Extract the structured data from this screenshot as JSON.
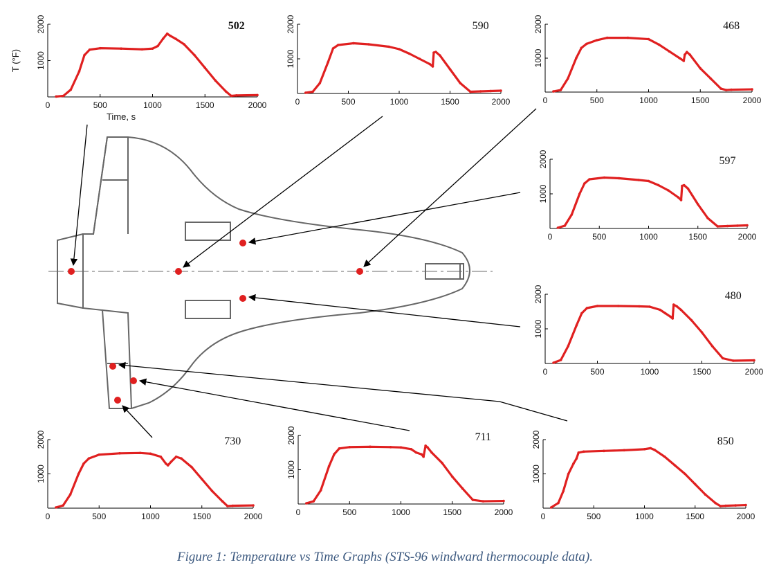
{
  "caption": "Figure 1: Temperature vs Time Graphs (STS-96 windward thermocouple data).",
  "colors": {
    "series": "#e02020",
    "axis": "#000000",
    "orbiter": "#555555"
  },
  "chart_data": [
    {
      "type": "line",
      "title": "502",
      "title_bold": true,
      "ylabel": "T (°F)",
      "xlabel": "Time, s",
      "xlim": [
        0,
        2000
      ],
      "ylim": [
        0,
        2000
      ],
      "x_ticks": [
        "0",
        "500",
        "1000",
        "1500",
        "2000"
      ],
      "y_ticks": [
        "1000",
        "2000"
      ],
      "series": [
        {
          "x": [
            80,
            150,
            220,
            300,
            350,
            400,
            500,
            700,
            900,
            1000,
            1050,
            1100,
            1140,
            1170,
            1220,
            1300,
            1400,
            1500,
            1600,
            1700,
            1750,
            1800,
            2000
          ],
          "y": [
            10,
            30,
            200,
            700,
            1150,
            1300,
            1340,
            1330,
            1310,
            1330,
            1400,
            1600,
            1740,
            1680,
            1600,
            1450,
            1150,
            800,
            450,
            150,
            30,
            40,
            50
          ]
        }
      ]
    },
    {
      "type": "line",
      "title": "590",
      "title_bold": false,
      "xlim": [
        0,
        2000
      ],
      "ylim": [
        0,
        2000
      ],
      "x_ticks": [
        "0",
        "500",
        "1000",
        "1500",
        "2000"
      ],
      "y_ticks": [
        "1000",
        "2000"
      ],
      "series": [
        {
          "x": [
            80,
            150,
            220,
            300,
            350,
            400,
            550,
            700,
            900,
            1000,
            1100,
            1200,
            1300,
            1330,
            1340,
            1360,
            1400,
            1500,
            1600,
            1700,
            1800,
            1900,
            2000
          ],
          "y": [
            20,
            50,
            300,
            900,
            1300,
            1400,
            1450,
            1420,
            1350,
            1280,
            1150,
            1000,
            850,
            780,
            1180,
            1200,
            1100,
            700,
            300,
            50,
            60,
            70,
            80
          ]
        }
      ]
    },
    {
      "type": "line",
      "title": "468",
      "title_bold": false,
      "xlim": [
        0,
        2000
      ],
      "ylim": [
        0,
        2000
      ],
      "x_ticks": [
        "0",
        "500",
        "1000",
        "1500",
        "2000"
      ],
      "y_ticks": [
        "1000",
        "2000"
      ],
      "series": [
        {
          "x": [
            80,
            150,
            220,
            300,
            350,
            400,
            500,
            600,
            800,
            1000,
            1100,
            1200,
            1300,
            1340,
            1350,
            1370,
            1400,
            1500,
            1600,
            1700,
            1750,
            1800,
            2000
          ],
          "y": [
            20,
            60,
            400,
            1000,
            1300,
            1420,
            1530,
            1600,
            1600,
            1560,
            1400,
            1200,
            1000,
            920,
            1100,
            1180,
            1100,
            700,
            400,
            100,
            60,
            70,
            80
          ]
        }
      ]
    },
    {
      "type": "line",
      "title": "597",
      "title_bold": false,
      "xlim": [
        0,
        2000
      ],
      "ylim": [
        0,
        2000
      ],
      "x_ticks": [
        "0",
        "500",
        "1000",
        "1500",
        "2000"
      ],
      "y_ticks": [
        "1000",
        "2000"
      ],
      "series": [
        {
          "x": [
            80,
            150,
            220,
            300,
            350,
            400,
            550,
            700,
            900,
            1000,
            1100,
            1200,
            1300,
            1330,
            1340,
            1360,
            1400,
            1500,
            1600,
            1700,
            1800,
            1900,
            2000
          ],
          "y": [
            20,
            80,
            400,
            1000,
            1300,
            1420,
            1470,
            1450,
            1400,
            1370,
            1250,
            1100,
            900,
            820,
            1230,
            1250,
            1150,
            700,
            300,
            60,
            70,
            80,
            90
          ]
        }
      ]
    },
    {
      "type": "line",
      "title": "480",
      "title_bold": false,
      "xlim": [
        0,
        2000
      ],
      "ylim": [
        0,
        2000
      ],
      "x_ticks": [
        "0",
        "500",
        "1000",
        "1500",
        "2000"
      ],
      "y_ticks": [
        "1000",
        "2000"
      ],
      "series": [
        {
          "x": [
            80,
            150,
            220,
            300,
            350,
            400,
            500,
            700,
            900,
            1000,
            1100,
            1150,
            1200,
            1220,
            1230,
            1260,
            1300,
            1400,
            1500,
            1600,
            1700,
            1800,
            2000
          ],
          "y": [
            20,
            100,
            500,
            1100,
            1450,
            1600,
            1660,
            1660,
            1650,
            1640,
            1550,
            1450,
            1350,
            1300,
            1700,
            1650,
            1550,
            1250,
            900,
            500,
            150,
            80,
            90
          ]
        }
      ]
    },
    {
      "type": "line",
      "title": "730",
      "title_bold": false,
      "xlim": [
        0,
        2000
      ],
      "ylim": [
        0,
        2000
      ],
      "x_ticks": [
        "0",
        "500",
        "1000",
        "1500",
        "2000"
      ],
      "y_ticks": [
        "1000",
        "2000"
      ],
      "series": [
        {
          "x": [
            80,
            150,
            220,
            300,
            350,
            400,
            500,
            700,
            900,
            1000,
            1100,
            1150,
            1170,
            1200,
            1250,
            1300,
            1400,
            1500,
            1600,
            1700,
            1750,
            1800,
            2000
          ],
          "y": [
            20,
            80,
            400,
            1000,
            1300,
            1450,
            1560,
            1600,
            1610,
            1590,
            1500,
            1300,
            1250,
            1350,
            1500,
            1450,
            1200,
            850,
            500,
            200,
            60,
            70,
            80
          ]
        }
      ]
    },
    {
      "type": "line",
      "title": "711",
      "title_bold": false,
      "xlim": [
        0,
        2000
      ],
      "ylim": [
        0,
        2000
      ],
      "x_ticks": [
        "0",
        "500",
        "1000",
        "1500",
        "2000"
      ],
      "y_ticks": [
        "1000",
        "2000"
      ],
      "series": [
        {
          "x": [
            80,
            150,
            220,
            300,
            350,
            400,
            500,
            700,
            900,
            1000,
            1100,
            1150,
            1200,
            1220,
            1240,
            1260,
            1300,
            1400,
            1500,
            1600,
            1700,
            1800,
            2000
          ],
          "y": [
            20,
            80,
            400,
            1100,
            1450,
            1620,
            1660,
            1670,
            1660,
            1650,
            1600,
            1500,
            1450,
            1380,
            1700,
            1650,
            1500,
            1200,
            800,
            450,
            120,
            80,
            90
          ]
        }
      ]
    },
    {
      "type": "line",
      "title": "850",
      "title_bold": false,
      "xlim": [
        0,
        2000
      ],
      "ylim": [
        0,
        2000
      ],
      "x_ticks": [
        "0",
        "500",
        "1000",
        "1500",
        "2000"
      ],
      "y_ticks": [
        "1000",
        "2000"
      ],
      "series": [
        {
          "x": [
            80,
            150,
            200,
            250,
            300,
            330,
            350,
            400,
            600,
            800,
            1000,
            1060,
            1100,
            1200,
            1300,
            1400,
            1500,
            1600,
            1700,
            1750,
            1800,
            1900,
            2000
          ],
          "y": [
            20,
            150,
            500,
            1000,
            1300,
            1450,
            1620,
            1650,
            1670,
            1690,
            1720,
            1750,
            1700,
            1500,
            1250,
            1000,
            700,
            400,
            150,
            60,
            70,
            80,
            90
          ]
        }
      ]
    }
  ]
}
